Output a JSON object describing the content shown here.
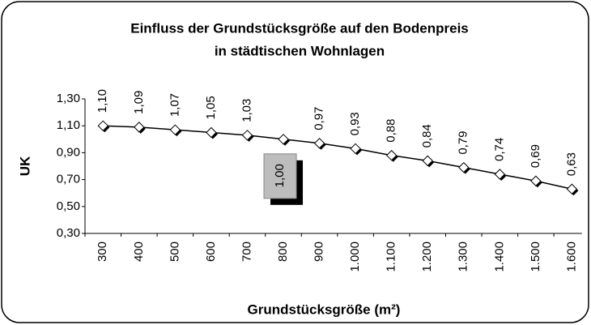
{
  "chart_data": {
    "type": "line",
    "title": [
      "Einfluss der Grundstücksgröße auf den Bodenpreis",
      "in städtischen Wohnlagen"
    ],
    "x_label": "Grundstücksgröße (m²)",
    "y_label": "UK",
    "categories": [
      "300",
      "400",
      "500",
      "600",
      "700",
      "800",
      "900",
      "1.000",
      "1.100",
      "1.200",
      "1.300",
      "1.400",
      "1.500",
      "1.600"
    ],
    "series": [
      {
        "color": "#000000",
        "values": [
          1.1,
          1.09,
          1.07,
          1.05,
          1.03,
          1.0,
          0.97,
          0.93,
          0.88,
          0.84,
          0.79,
          0.74,
          0.69,
          0.63
        ],
        "value_labels": [
          "1,10",
          "1,09",
          "1,07",
          "1,05",
          "1,03",
          "1,00",
          "0,97",
          "0,93",
          "0,88",
          "0,84",
          "0,79",
          "0,74",
          "0,69",
          "0,63"
        ]
      }
    ],
    "highlight": 5,
    "ylim": [
      0.3,
      1.3
    ],
    "yticks": [
      {
        "value": 0.3,
        "label": "0,30"
      },
      {
        "value": 0.5,
        "label": "0,50"
      },
      {
        "value": 0.7,
        "label": "0,70"
      },
      {
        "value": 0.9,
        "label": "0,90"
      },
      {
        "value": 1.1,
        "label": "1,10"
      },
      {
        "value": 1.3,
        "label": "1,30"
      }
    ],
    "grid": false
  }
}
